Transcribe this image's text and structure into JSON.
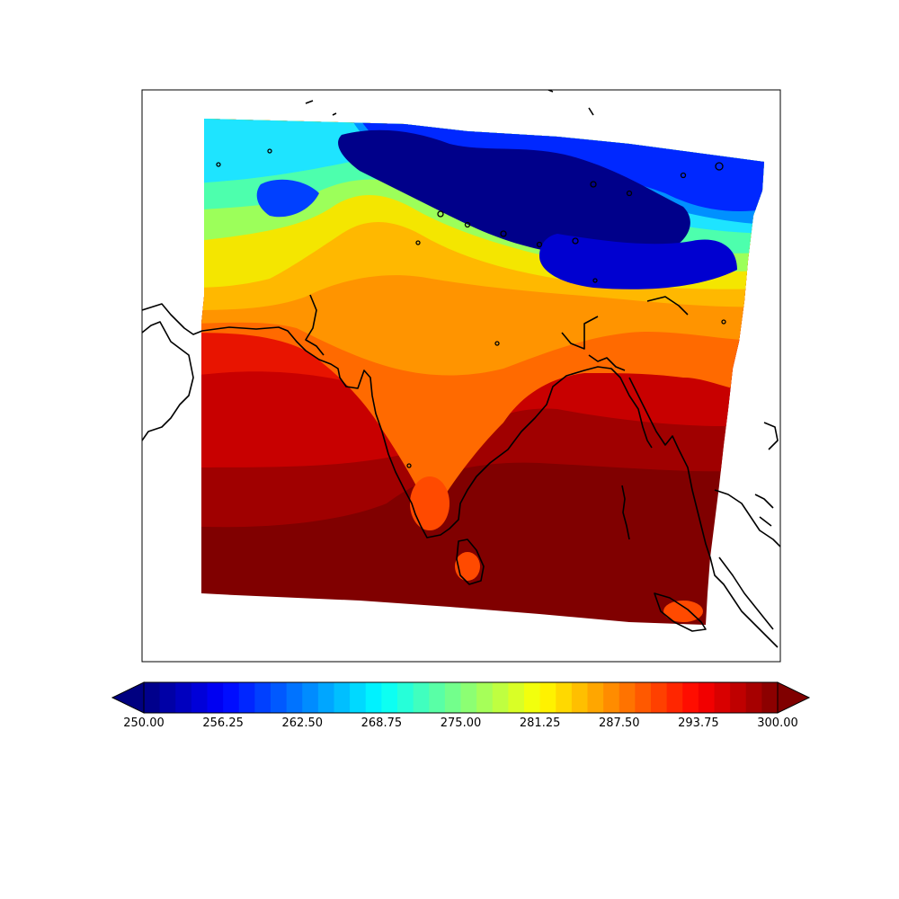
{
  "colorbar": {
    "min": 250.0,
    "max": 300.0,
    "levels": 40,
    "extend": "both",
    "ticks": [
      "250.00",
      "256.25",
      "262.50",
      "268.75",
      "275.00",
      "281.25",
      "287.50",
      "293.75",
      "300.00"
    ],
    "colormap": "jet"
  },
  "map": {
    "field": "filled contour",
    "region": "South Asia",
    "coastlines": true,
    "grid": false
  },
  "colors": {
    "frame": "#000000",
    "background": "#ffffff",
    "coastline": "#000000"
  }
}
